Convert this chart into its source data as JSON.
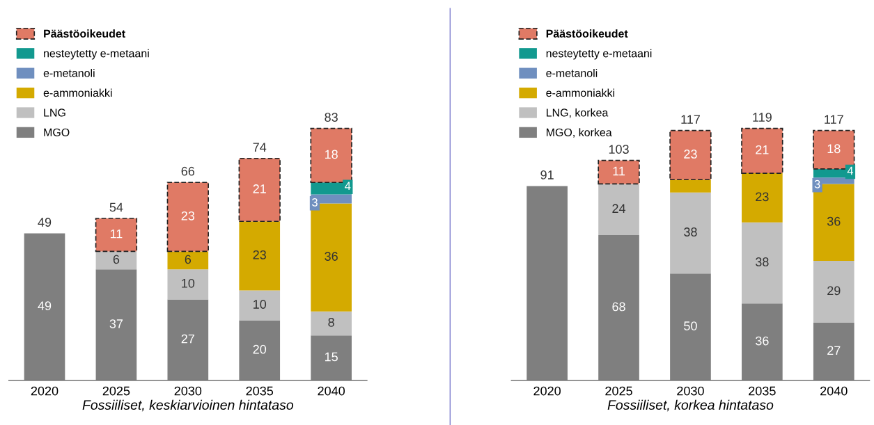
{
  "chart_data": [
    {
      "type": "bar",
      "stacked": true,
      "xlabel": "Fossiiliset, keskiarvioinen hintataso",
      "categories": [
        "2020",
        "2025",
        "2030",
        "2035",
        "2040"
      ],
      "legend": "top left",
      "grid": false,
      "series": [
        {
          "name": "MGO",
          "color": "#7f7f7f",
          "values": [
            49,
            37,
            27,
            20,
            15
          ],
          "value_labels": [
            "49",
            "37",
            "27",
            "20",
            "15"
          ]
        },
        {
          "name": "LNG",
          "color": "#c0c0c0",
          "values": [
            null,
            6,
            10,
            10,
            8
          ],
          "value_labels": [
            null,
            "6",
            "10",
            "10",
            "8"
          ]
        },
        {
          "name": "e-ammoniakki",
          "color": "#d4aa00",
          "values": [
            null,
            null,
            6,
            23,
            36
          ],
          "value_labels": [
            null,
            null,
            "6",
            "23",
            "36"
          ]
        },
        {
          "name": "e-metanoli",
          "color": "#6f8fbf",
          "values": [
            null,
            null,
            null,
            null,
            3
          ],
          "value_labels": [
            null,
            null,
            null,
            null,
            "3"
          ]
        },
        {
          "name": "nesteytetty e-metaani",
          "color": "#12998f",
          "values": [
            null,
            null,
            null,
            null,
            4
          ],
          "value_labels": [
            null,
            null,
            null,
            null,
            "4"
          ]
        },
        {
          "name": "Päästöoikeudet",
          "color": "#e07a65",
          "line_style": "dashed",
          "values": [
            null,
            11,
            23,
            21,
            18
          ],
          "value_labels": [
            null,
            "11",
            "23",
            "21",
            "18"
          ]
        }
      ],
      "totals": [
        "49",
        "54",
        "66",
        "74",
        "83"
      ]
    },
    {
      "type": "bar",
      "stacked": true,
      "xlabel": "Fossiiliset, korkea hintataso",
      "categories": [
        "2020",
        "2025",
        "2030",
        "2035",
        "2040"
      ],
      "legend": "top left",
      "grid": false,
      "series": [
        {
          "name": "MGO, korkea",
          "color": "#7f7f7f",
          "values": [
            91,
            68,
            50,
            36,
            27
          ],
          "value_labels": [
            null,
            "68",
            "50",
            "36",
            "27"
          ]
        },
        {
          "name": "LNG, korkea",
          "color": "#c0c0c0",
          "values": [
            null,
            24,
            38,
            38,
            29
          ],
          "value_labels": [
            null,
            "24",
            "38",
            "38",
            "29"
          ]
        },
        {
          "name": "e-ammoniakki",
          "color": "#d4aa00",
          "values": [
            null,
            null,
            6,
            23,
            36
          ],
          "value_labels": [
            null,
            null,
            null,
            "23",
            "36"
          ]
        },
        {
          "name": "e-metanoli",
          "color": "#6f8fbf",
          "values": [
            null,
            null,
            null,
            null,
            3
          ],
          "value_labels": [
            null,
            null,
            null,
            null,
            "3"
          ]
        },
        {
          "name": "nesteytetty e-metaani",
          "color": "#12998f",
          "values": [
            null,
            null,
            null,
            null,
            4
          ],
          "value_labels": [
            null,
            null,
            null,
            null,
            "4"
          ]
        },
        {
          "name": "Päästöoikeudet",
          "color": "#e07a65",
          "line_style": "dashed",
          "values": [
            null,
            11,
            23,
            21,
            18
          ],
          "value_labels": [
            null,
            "11",
            "23",
            "21",
            "18"
          ]
        }
      ],
      "totals": [
        "91",
        "103",
        "117",
        "119",
        "117"
      ]
    }
  ]
}
